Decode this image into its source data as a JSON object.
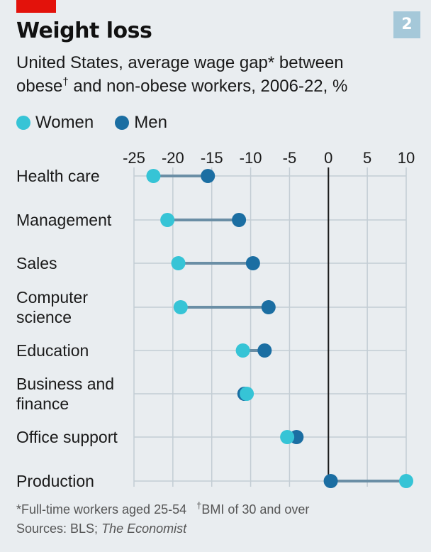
{
  "header": {
    "badge": "2",
    "title": "Weight loss",
    "subtitle_pre": "United States, average wage gap* between obese",
    "subtitle_dagger": "†",
    "subtitle_post": " and non-obese workers, 2006-22, %"
  },
  "legend": [
    {
      "label": "Women",
      "color": "#36c4d6"
    },
    {
      "label": "Men",
      "color": "#1b6ea2"
    }
  ],
  "colors": {
    "women": "#36c4d6",
    "men": "#1b6ea2",
    "connector": "#6a8ea5",
    "grid": "#c3cdd4",
    "zero_line": "#1a1a1a"
  },
  "footnotes": {
    "note1": "*Full-time workers aged 25-54",
    "note2_dagger": "†",
    "note2": "BMI of 30 and over",
    "sources_prefix": "Sources: BLS; ",
    "sources_italic": "The Economist"
  },
  "chart_data": {
    "type": "dumbbell",
    "xlim": [
      -25,
      10
    ],
    "xticks": [
      "-25",
      "-20",
      "-15",
      "-10",
      "-5",
      "0",
      "5",
      "10"
    ],
    "xtick_values": [
      -25,
      -20,
      -15,
      -10,
      -5,
      0,
      5,
      10
    ],
    "categories": [
      [
        "Health care"
      ],
      [
        "Management"
      ],
      [
        "Sales"
      ],
      [
        "Computer",
        "science"
      ],
      [
        "Education"
      ],
      [
        "Business and",
        "finance"
      ],
      [
        "Office support"
      ],
      [
        "Production"
      ]
    ],
    "series": [
      {
        "name": "Women",
        "values": [
          -22.5,
          -20.7,
          -19.3,
          -19.0,
          -11.0,
          -10.5,
          -5.3,
          10.0
        ]
      },
      {
        "name": "Men",
        "values": [
          -15.5,
          -11.5,
          -9.7,
          -7.7,
          -8.2,
          -10.8,
          -4.1,
          0.3
        ]
      }
    ]
  }
}
